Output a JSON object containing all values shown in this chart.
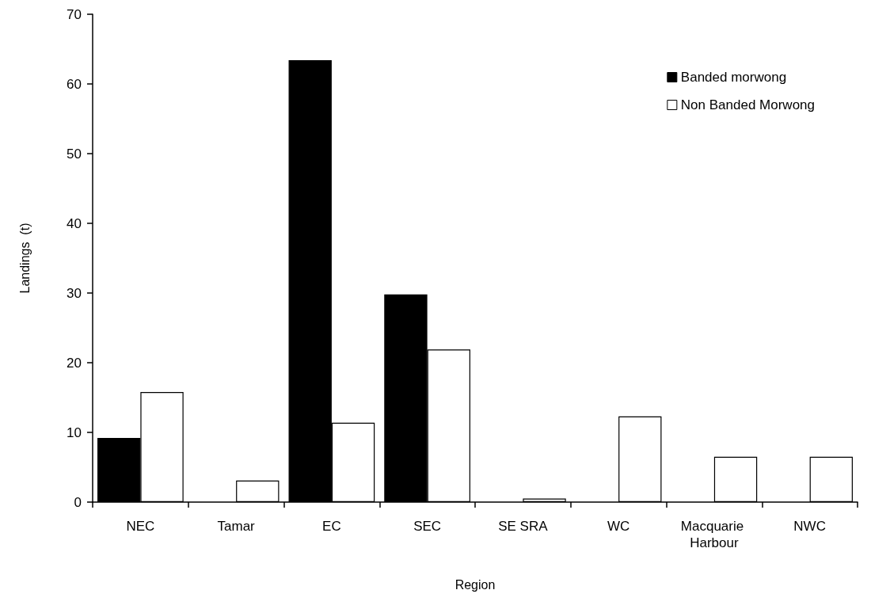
{
  "chart_data": {
    "type": "bar",
    "xlabel": "Region",
    "ylabel": "Landings  (t)",
    "categories": [
      "NEC",
      "Tamar",
      "EC",
      "SEC",
      "SE SRA",
      "WC",
      "Macquarie Harbour",
      "NWC"
    ],
    "series": [
      {
        "name": "Banded morwong",
        "color": "#000000",
        "values": [
          9.2,
          null,
          63.4,
          29.8,
          null,
          null,
          null,
          null
        ]
      },
      {
        "name": "Non Banded Morwong",
        "color": "#ffffff",
        "values": [
          15.8,
          3.1,
          11.4,
          21.9,
          0.5,
          12.3,
          6.5,
          6.5
        ]
      }
    ],
    "ylim": [
      0,
      70
    ],
    "yticks": [
      0,
      10,
      20,
      30,
      40,
      50,
      60,
      70
    ],
    "grid": false,
    "legend": "top right"
  }
}
